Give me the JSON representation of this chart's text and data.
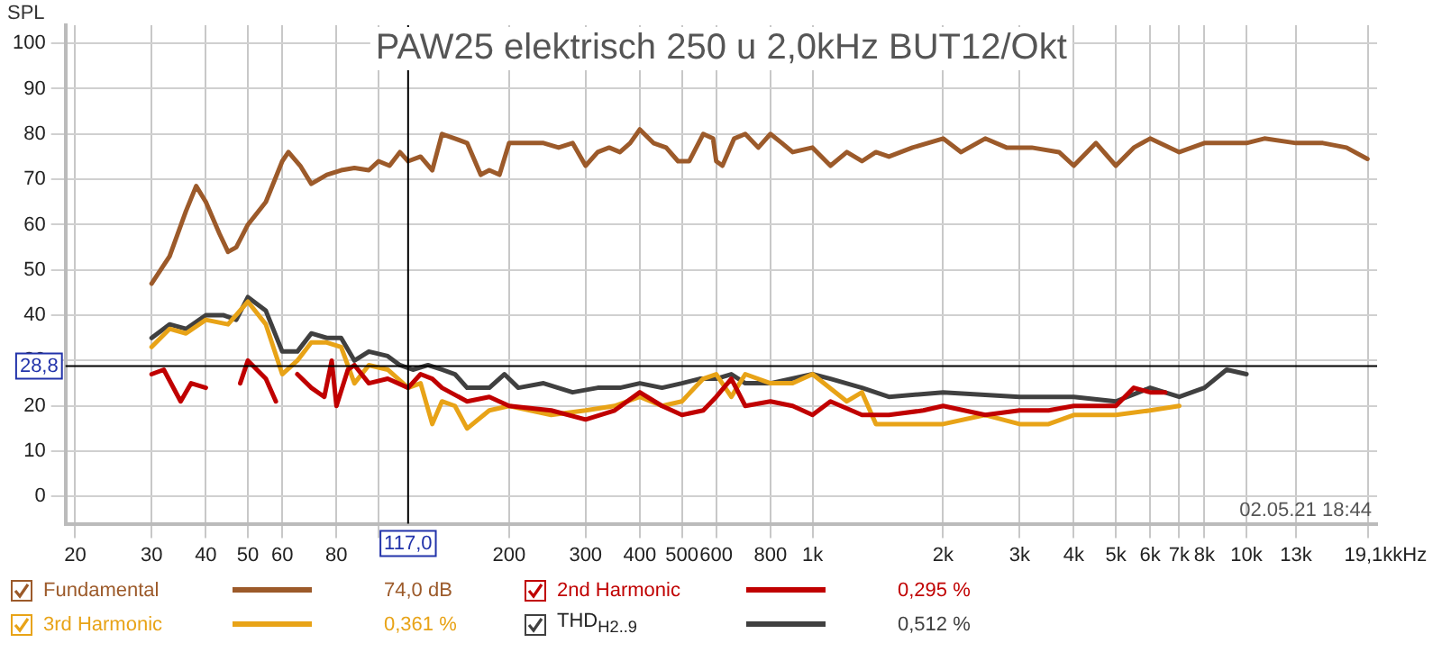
{
  "chart_data": {
    "type": "line",
    "title": "PAW25 elektrisch 250 u 2,0kHz BUT12/Okt",
    "ylabel": "SPL",
    "log": "x",
    "xlim": [
      19,
      20000
    ],
    "ylim": [
      -6,
      104
    ],
    "xticks": [
      20,
      30,
      40,
      50,
      60,
      80,
      {
        "value": 100,
        "label": null
      },
      200,
      300,
      400,
      500,
      600,
      800,
      {
        "value": 1000,
        "label": "1k"
      },
      {
        "value": 2000,
        "label": "2k"
      },
      {
        "value": 3000,
        "label": "3k"
      },
      {
        "value": 4000,
        "label": "4k"
      },
      {
        "value": 5000,
        "label": "5k"
      },
      {
        "value": 6000,
        "label": "6k"
      },
      {
        "value": 7000,
        "label": "7k"
      },
      {
        "value": 8000,
        "label": "8k"
      },
      {
        "value": 10000,
        "label": "10k"
      },
      {
        "value": 13000,
        "label": "13k"
      },
      {
        "value": 19100,
        "label": "19,1k"
      }
    ],
    "xlabel": "kHz",
    "yticks": [
      0,
      10,
      20,
      30,
      40,
      50,
      60,
      70,
      80,
      90,
      100
    ],
    "grid": true,
    "legend": "bottom",
    "marker": "none",
    "line_style": "solid",
    "ref_lines": [
      {
        "axis": "x",
        "value": 117,
        "label": "117,0",
        "color": "#000000"
      },
      {
        "axis": "y",
        "value": 28.8,
        "label": "28,8",
        "color": "#000000"
      }
    ],
    "annotations": [
      "02.05.21 18:44",
      "74,0 dB",
      "0,295 %",
      "0,361 %",
      "0,512 %"
    ],
    "series": [
      {
        "name": "Fundamental",
        "color": "#9c5a2a",
        "x": [
          30,
          33,
          36,
          38,
          40,
          43,
          45,
          47,
          50,
          55,
          60,
          62,
          66,
          70,
          76,
          82,
          88,
          95,
          100,
          106,
          112,
          117,
          125,
          133,
          140,
          150,
          160,
          172,
          180,
          190,
          200,
          220,
          240,
          260,
          280,
          300,
          320,
          340,
          360,
          380,
          400,
          430,
          460,
          490,
          520,
          560,
          590,
          600,
          620,
          660,
          700,
          750,
          800,
          850,
          900,
          1000,
          1100,
          1200,
          1300,
          1400,
          1500,
          1700,
          2000,
          2200,
          2500,
          2800,
          3200,
          3700,
          4000,
          4500,
          5000,
          5500,
          6000,
          7000,
          8000,
          10000,
          11000,
          13000,
          15000,
          17000,
          19000
        ],
        "values": [
          47,
          53,
          63,
          68.5,
          65,
          58,
          54,
          55,
          60,
          65,
          74,
          76,
          73,
          69,
          71,
          72,
          72.5,
          72,
          74,
          73,
          76,
          74,
          75,
          72,
          80,
          79,
          78,
          71,
          72,
          71,
          78,
          78,
          78,
          77,
          78,
          73,
          76,
          77,
          76,
          78,
          81,
          78,
          77,
          74,
          74,
          80,
          79,
          74,
          73,
          79,
          80,
          77,
          80,
          78,
          76,
          77,
          73,
          76,
          74,
          76,
          75,
          77,
          79,
          76,
          79,
          77,
          77,
          76,
          73,
          78,
          73,
          77,
          79,
          76,
          78,
          78,
          79,
          78,
          78,
          77,
          74.5
        ]
      },
      {
        "name": "2nd Harmonic",
        "color": "#c00000",
        "x": [
          30,
          32,
          35,
          37,
          40,
          45,
          48,
          50,
          55,
          58,
          60,
          65,
          70,
          75,
          78,
          80,
          85,
          88,
          95,
          105,
          117,
          125,
          133,
          140,
          160,
          180,
          200,
          250,
          300,
          350,
          400,
          450,
          500,
          560,
          600,
          650,
          700,
          800,
          900,
          1000,
          1100,
          1300,
          1500,
          1800,
          2000,
          2500,
          3000,
          3500,
          4000,
          5000,
          5500,
          6000,
          6500
        ],
        "values": [
          27,
          28,
          21,
          25,
          24,
          null,
          25,
          30,
          26,
          21,
          null,
          27,
          24,
          22,
          30,
          20,
          28,
          29,
          25,
          26,
          24,
          27,
          26,
          24,
          21,
          22,
          20,
          19,
          17,
          19,
          23,
          20,
          18,
          19,
          22,
          26,
          20,
          21,
          20,
          18,
          21,
          18,
          18,
          19,
          20,
          18,
          19,
          19,
          20,
          20,
          24,
          23,
          23
        ]
      },
      {
        "name": "3rd Harmonic",
        "color": "#e8a317",
        "x": [
          30,
          33,
          36,
          40,
          45,
          50,
          55,
          60,
          65,
          70,
          76,
          82,
          88,
          95,
          105,
          117,
          125,
          133,
          140,
          150,
          160,
          180,
          200,
          250,
          300,
          350,
          400,
          450,
          500,
          560,
          600,
          650,
          700,
          800,
          900,
          1000,
          1200,
          1300,
          1400,
          1700,
          2000,
          2500,
          3000,
          3500,
          4000,
          5000,
          6000,
          7000
        ],
        "values": [
          33,
          37,
          36,
          39,
          38,
          43,
          38,
          27,
          30,
          34,
          34,
          33,
          25,
          29,
          28,
          24,
          25,
          16,
          21,
          20,
          15,
          19,
          20,
          18,
          19,
          20,
          22,
          20,
          21,
          26,
          27,
          22,
          27,
          25,
          25,
          27,
          21,
          23,
          16,
          16,
          16,
          18,
          16,
          16,
          18,
          18,
          19,
          20
        ]
      },
      {
        "name": "THD$_{H2..9}$",
        "color": "#404040",
        "x": [
          30,
          33,
          36,
          40,
          44,
          47,
          50,
          55,
          60,
          65,
          70,
          76,
          82,
          88,
          95,
          105,
          112,
          120,
          130,
          140,
          150,
          160,
          180,
          195,
          210,
          240,
          280,
          320,
          360,
          400,
          450,
          500,
          550,
          600,
          650,
          700,
          800,
          1000,
          1100,
          1300,
          1500,
          2000,
          3000,
          3500,
          4000,
          5000,
          6000,
          7000,
          8000,
          9000,
          10000
        ],
        "values": [
          35,
          38,
          37,
          40,
          40,
          39,
          44,
          41,
          32,
          32,
          36,
          35,
          35,
          30,
          32,
          31,
          29,
          28,
          29,
          28,
          27,
          24,
          24,
          27,
          24,
          25,
          23,
          24,
          24,
          25,
          24,
          25,
          26,
          26,
          27,
          25,
          25,
          27,
          26,
          24,
          22,
          23,
          22,
          22,
          22,
          21,
          24,
          22,
          24,
          28,
          27
        ]
      }
    ]
  }
}
